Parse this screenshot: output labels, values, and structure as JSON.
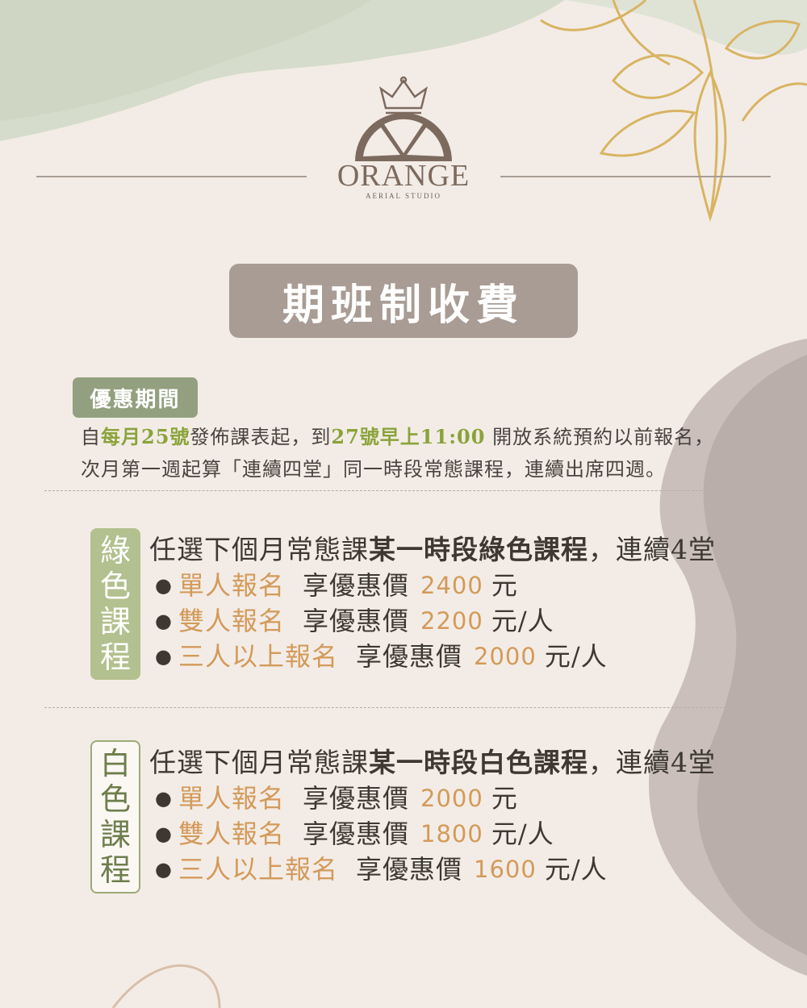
{
  "brand": {
    "name": "ORANGE",
    "subtitle": "AERIAL STUDIO"
  },
  "title": "期班制收費",
  "promo": {
    "tag": "優惠期間",
    "line1_pre": "自",
    "line1_hl1": "每月25號",
    "line1_mid": "發佈課表起，到",
    "line1_hl2": "27號早上11:00",
    "line1_post": " 開放系統預約以前報名，",
    "line2": "次月第一週起算「連續四堂」同一時段常態課程，連續出席四週。"
  },
  "courses": [
    {
      "tag": [
        "綠",
        "色",
        "課",
        "程"
      ],
      "head_pre": "任選下個月常態課",
      "head_bold": "某一時段綠色課程",
      "head_post": "，連續4堂",
      "items": [
        {
          "label": "單人報名",
          "text": "享優惠價",
          "price": "2400",
          "unit": "元"
        },
        {
          "label": "雙人報名",
          "text": "享優惠價",
          "price": "2200",
          "unit": "元/人"
        },
        {
          "label": "三人以上報名",
          "text": "享優惠價",
          "price": "2000",
          "unit": "元/人"
        }
      ]
    },
    {
      "tag": [
        "白",
        "色",
        "課",
        "程"
      ],
      "head_pre": "任選下個月常態課",
      "head_bold": "某一時段白色課程",
      "head_post": "，連續4堂",
      "items": [
        {
          "label": "單人報名",
          "text": "享優惠價",
          "price": "2000",
          "unit": "元"
        },
        {
          "label": "雙人報名",
          "text": "享優惠價",
          "price": "1800",
          "unit": "元/人"
        },
        {
          "label": "三人以上報名",
          "text": "享優惠價",
          "price": "1600",
          "unit": "元/人"
        }
      ]
    }
  ],
  "colors": {
    "accent_green": "#8aa33a",
    "price_orange": "#d39a5a",
    "title_bg": "#a89c94"
  }
}
